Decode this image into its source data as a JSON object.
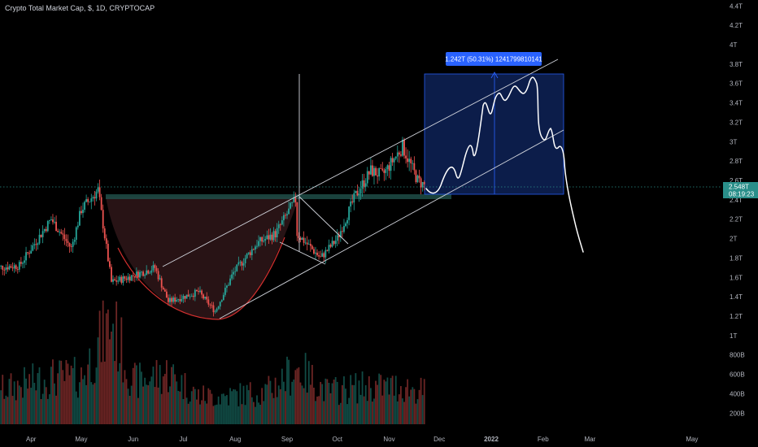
{
  "header": {
    "title": "Crypto Total Market Cap, $, 1D, CRYPTOCAP"
  },
  "colors": {
    "background": "#000000",
    "up": "#26a69a",
    "down": "#ef5350",
    "accent_blue": "#2962ff",
    "projection_box": "#0d1f4f",
    "cup_fill": "#2a1416",
    "resistance_band": "#1f4d48",
    "price_tag": "#2a8f8a"
  },
  "price_tag": {
    "price": "2.548T",
    "countdown": "08:19:23"
  },
  "measure": {
    "label": "1.242T (50.31%) 1241799810141"
  },
  "chart_data": {
    "type": "candlestick",
    "title": "Crypto Total Market Cap, $, 1D, CRYPTOCAP",
    "y_axis_labels": [
      "4.4T",
      "4.2T",
      "4T",
      "3.8T",
      "3.6T",
      "3.4T",
      "3.2T",
      "3T",
      "2.8T",
      "2.6T",
      "2.4T",
      "2.2T",
      "2T",
      "1.8T",
      "1.6T",
      "1.4T",
      "1.2T",
      "1T",
      "800B",
      "600B",
      "400B",
      "200B"
    ],
    "y_axis_values": [
      4.4,
      4.2,
      4.0,
      3.8,
      3.6,
      3.4,
      3.2,
      3.0,
      2.8,
      2.6,
      2.4,
      2.2,
      2.0,
      1.8,
      1.6,
      1.4,
      1.2,
      1.0,
      0.8,
      0.6,
      0.4,
      0.2
    ],
    "x_axis_labels": [
      "Apr",
      "May",
      "Jun",
      "Jul",
      "Aug",
      "Sep",
      "Oct",
      "Nov",
      "Dec",
      "2022",
      "Feb",
      "Mar",
      "May"
    ],
    "x_axis_dates": [
      "2021-04-01",
      "2021-05-01",
      "2021-06-01",
      "2021-07-01",
      "2021-08-01",
      "2021-09-01",
      "2021-10-01",
      "2021-11-01",
      "2021-12-01",
      "2022-01-01",
      "2022-02-01",
      "2022-03-01",
      "2022-05-01"
    ],
    "ylim": [
      0.1,
      4.5
    ],
    "current_price": 2.548,
    "price_keyframes": [
      [
        "2021-03-10",
        1.7
      ],
      [
        "2021-03-25",
        1.72
      ],
      [
        "2021-04-13",
        2.2
      ],
      [
        "2021-04-25",
        1.9
      ],
      [
        "2021-05-01",
        2.3
      ],
      [
        "2021-05-11",
        2.5
      ],
      [
        "2021-05-19",
        1.55
      ],
      [
        "2021-05-29",
        1.6
      ],
      [
        "2021-06-14",
        1.7
      ],
      [
        "2021-06-22",
        1.35
      ],
      [
        "2021-07-10",
        1.45
      ],
      [
        "2021-07-20",
        1.25
      ],
      [
        "2021-07-31",
        1.65
      ],
      [
        "2021-08-14",
        1.95
      ],
      [
        "2021-08-25",
        2.05
      ],
      [
        "2021-09-06",
        2.4
      ],
      [
        "2021-09-07",
        2.05
      ],
      [
        "2021-09-21",
        1.8
      ],
      [
        "2021-10-01",
        2.0
      ],
      [
        "2021-10-12",
        2.45
      ],
      [
        "2021-10-21",
        2.7
      ],
      [
        "2021-10-28",
        2.65
      ],
      [
        "2021-11-09",
        2.95
      ],
      [
        "2021-11-18",
        2.6
      ],
      [
        "2021-11-22",
        2.55
      ]
    ],
    "volume_keyframes": [
      [
        "2021-03-10",
        0.35
      ],
      [
        "2021-04-13",
        0.5
      ],
      [
        "2021-05-01",
        0.5
      ],
      [
        "2021-05-19",
        1.1
      ],
      [
        "2021-06-01",
        0.45
      ],
      [
        "2021-06-22",
        0.55
      ],
      [
        "2021-07-10",
        0.3
      ],
      [
        "2021-07-25",
        0.3
      ],
      [
        "2021-08-20",
        0.35
      ],
      [
        "2021-09-07",
        0.6
      ],
      [
        "2021-09-25",
        0.35
      ],
      [
        "2021-10-15",
        0.4
      ],
      [
        "2021-11-09",
        0.4
      ],
      [
        "2021-11-22",
        0.35
      ]
    ]
  }
}
